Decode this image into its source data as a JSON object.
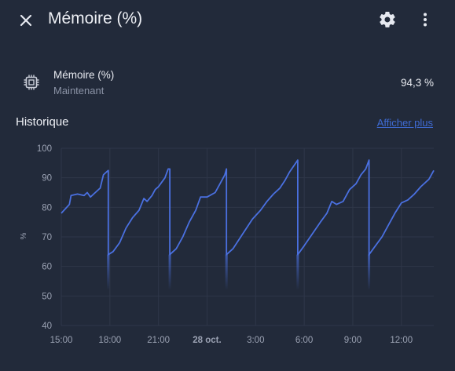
{
  "header": {
    "title": "Mémoire (%)",
    "close_icon": "close-icon",
    "settings_icon": "gear-icon",
    "more_icon": "more-vertical-icon"
  },
  "entity": {
    "icon": "memory-chip-icon",
    "name": "Mémoire (%)",
    "state_time": "Maintenant",
    "value": "94,3 %"
  },
  "history": {
    "title": "Historique",
    "more_link": "Afficher plus"
  },
  "colors": {
    "background": "#222a3a",
    "line": "#4a70e0",
    "grid": "#2f3749",
    "link": "#3f6bd3"
  },
  "chart_data": {
    "type": "line",
    "ylabel": "%",
    "ylim": [
      40,
      100
    ],
    "yticks": [
      "100",
      "90",
      "80",
      "70",
      "60",
      "50",
      "40"
    ],
    "xlim": [
      "2023-10-27T15:00",
      "2023-10-28T14:00"
    ],
    "xticks": [
      {
        "label": "15:00",
        "x": "2023-10-27T15:00",
        "bold": false
      },
      {
        "label": "18:00",
        "x": "2023-10-27T18:00",
        "bold": false
      },
      {
        "label": "21:00",
        "x": "2023-10-27T21:00",
        "bold": false
      },
      {
        "label": "28 oct.",
        "x": "2023-10-28T00:00",
        "bold": true
      },
      {
        "label": "3:00",
        "x": "2023-10-28T03:00",
        "bold": false
      },
      {
        "label": "6:00",
        "x": "2023-10-28T06:00",
        "bold": false
      },
      {
        "label": "9:00",
        "x": "2023-10-28T09:00",
        "bold": false
      },
      {
        "label": "12:00",
        "x": "2023-10-28T12:00",
        "bold": false
      }
    ],
    "grid": true,
    "series": [
      {
        "points": [
          [
            "2023-10-27T15:00",
            78.0
          ],
          [
            "2023-10-27T15:30",
            81.0
          ],
          [
            "2023-10-27T15:36",
            84.0
          ],
          [
            "2023-10-27T16:00",
            84.5
          ],
          [
            "2023-10-27T16:24",
            84.0
          ],
          [
            "2023-10-27T16:36",
            85.0
          ],
          [
            "2023-10-27T16:48",
            83.5
          ],
          [
            "2023-10-27T17:00",
            84.5
          ],
          [
            "2023-10-27T17:24",
            86.5
          ],
          [
            "2023-10-27T17:36",
            91.0
          ],
          [
            "2023-10-27T17:48",
            92.0
          ],
          [
            "2023-10-27T17:54",
            92.5
          ],
          [
            "2023-10-27T17:54",
            64.0
          ],
          [
            "2023-10-27T18:12",
            65.0
          ],
          [
            "2023-10-27T18:36",
            68.0
          ],
          [
            "2023-10-27T19:00",
            73.0
          ],
          [
            "2023-10-27T19:24",
            76.5
          ],
          [
            "2023-10-27T19:48",
            79.0
          ],
          [
            "2023-10-27T20:06",
            83.0
          ],
          [
            "2023-10-27T20:18",
            82.0
          ],
          [
            "2023-10-27T20:36",
            84.0
          ],
          [
            "2023-10-27T20:48",
            86.0
          ],
          [
            "2023-10-27T21:00",
            87.0
          ],
          [
            "2023-10-27T21:24",
            90.0
          ],
          [
            "2023-10-27T21:36",
            93.0
          ],
          [
            "2023-10-27T21:42",
            93.0
          ],
          [
            "2023-10-27T21:42",
            64.0
          ],
          [
            "2023-10-27T22:06",
            66.0
          ],
          [
            "2023-10-27T22:30",
            70.0
          ],
          [
            "2023-10-27T22:54",
            75.0
          ],
          [
            "2023-10-27T23:18",
            79.0
          ],
          [
            "2023-10-27T23:36",
            83.5
          ],
          [
            "2023-10-28T00:00",
            83.5
          ],
          [
            "2023-10-28T00:30",
            85.0
          ],
          [
            "2023-10-28T00:48",
            88.0
          ],
          [
            "2023-10-28T01:06",
            91.0
          ],
          [
            "2023-10-28T01:12",
            93.0
          ],
          [
            "2023-10-28T01:12",
            64.0
          ],
          [
            "2023-10-28T01:36",
            66.0
          ],
          [
            "2023-10-28T02:12",
            71.0
          ],
          [
            "2023-10-28T02:48",
            76.0
          ],
          [
            "2023-10-28T03:18",
            79.0
          ],
          [
            "2023-10-28T03:42",
            82.0
          ],
          [
            "2023-10-28T04:06",
            84.5
          ],
          [
            "2023-10-28T04:30",
            86.5
          ],
          [
            "2023-10-28T04:48",
            89.0
          ],
          [
            "2023-10-28T05:06",
            92.0
          ],
          [
            "2023-10-28T05:36",
            96.0
          ],
          [
            "2023-10-28T05:36",
            64.0
          ],
          [
            "2023-10-28T06:00",
            67.0
          ],
          [
            "2023-10-28T06:30",
            71.0
          ],
          [
            "2023-10-28T07:00",
            75.0
          ],
          [
            "2023-10-28T07:24",
            78.0
          ],
          [
            "2023-10-28T07:42",
            82.0
          ],
          [
            "2023-10-28T08:00",
            81.0
          ],
          [
            "2023-10-28T08:24",
            82.0
          ],
          [
            "2023-10-28T08:48",
            86.0
          ],
          [
            "2023-10-28T09:12",
            88.0
          ],
          [
            "2023-10-28T09:30",
            91.0
          ],
          [
            "2023-10-28T09:48",
            93.0
          ],
          [
            "2023-10-28T10:00",
            96.0
          ],
          [
            "2023-10-28T10:00",
            64.0
          ],
          [
            "2023-10-28T10:24",
            67.0
          ],
          [
            "2023-10-28T10:48",
            70.0
          ],
          [
            "2023-10-28T11:12",
            74.0
          ],
          [
            "2023-10-28T11:36",
            78.0
          ],
          [
            "2023-10-28T12:00",
            81.5
          ],
          [
            "2023-10-28T12:24",
            82.5
          ],
          [
            "2023-10-28T12:48",
            84.5
          ],
          [
            "2023-10-28T13:12",
            87.0
          ],
          [
            "2023-10-28T13:42",
            89.5
          ],
          [
            "2023-10-28T14:00",
            92.5
          ]
        ]
      }
    ]
  }
}
